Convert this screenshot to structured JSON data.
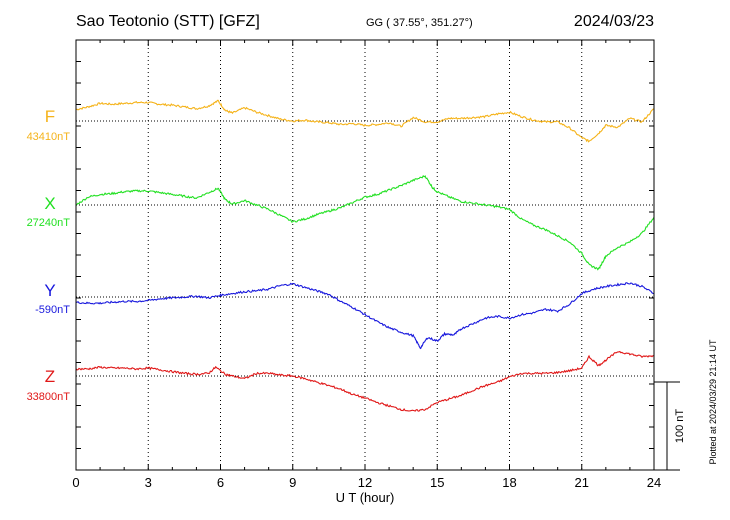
{
  "header": {
    "station": "Sao Teotonio (STT)  [GFZ]",
    "coords": "GG ( 37.55°, 351.27°)",
    "date": "2024/03/23"
  },
  "footer_note": "Plotted at 2024/03/29 21:14 UT",
  "scale_bar_label": "100 nT",
  "colors": {
    "F": "#f5b31a",
    "X": "#22e022",
    "Y": "#1818dd",
    "Z": "#e01818",
    "axis": "#000000",
    "grid": "#000000"
  },
  "chart_data": {
    "type": "line",
    "title": "Sao Teotonio (STT)  [GFZ]",
    "xlabel": "U T (hour)",
    "xlim": [
      0,
      24
    ],
    "x_ticks": [
      0,
      3,
      6,
      9,
      12,
      15,
      18,
      21,
      24
    ],
    "x_tick_labels": [
      "0",
      "3",
      "6",
      "9",
      "12",
      "15",
      "18",
      "21",
      "24"
    ],
    "grid": "dotted vertical lines every 3 hours",
    "scale_nT_per_bar": 100,
    "series": [
      {
        "name": "F",
        "baseline_label": "43410nT",
        "baseline_nT": 43410,
        "x": [
          0,
          0.5,
          1,
          1.5,
          2,
          2.5,
          3,
          3.5,
          4,
          4.5,
          5,
          5.5,
          5.9,
          6.2,
          6.5,
          7,
          7.5,
          8,
          8.5,
          9,
          9.5,
          10,
          10.5,
          11,
          11.5,
          12,
          12.5,
          13,
          13.5,
          14,
          14.5,
          15,
          15.5,
          16,
          16.5,
          17,
          17.5,
          18,
          18.5,
          19,
          19.5,
          20,
          20.5,
          21,
          21.3,
          21.7,
          22,
          22.5,
          23,
          23.5,
          24
        ],
        "values": [
          13,
          16,
          20,
          19,
          20,
          21,
          21,
          19,
          18,
          16,
          14,
          17,
          23,
          12,
          9,
          15,
          10,
          6,
          2,
          0,
          1,
          -1,
          -2,
          -4,
          -3,
          -5,
          -4,
          -2,
          -6,
          4,
          -1,
          -1,
          3,
          3,
          4,
          5,
          8,
          10,
          5,
          1,
          -1,
          -1,
          -8,
          -19,
          -23,
          -14,
          -5,
          -7,
          3,
          -1,
          14
        ]
      },
      {
        "name": "X",
        "baseline_label": "27240nT",
        "baseline_nT": 27240,
        "x": [
          0,
          0.5,
          1,
          1.5,
          2,
          2.5,
          3,
          3.5,
          4,
          4.5,
          5,
          5.5,
          5.9,
          6.2,
          6.5,
          7,
          7.5,
          8,
          8.5,
          9,
          9.5,
          10,
          10.5,
          11,
          11.5,
          12,
          12.5,
          13,
          13.5,
          14,
          14.5,
          14.8,
          15,
          15.5,
          16,
          16.5,
          17,
          17.5,
          18,
          18.5,
          19,
          19.5,
          20,
          20.5,
          21,
          21.3,
          21.7,
          22,
          22.5,
          23,
          23.5,
          24
        ],
        "values": [
          0,
          9,
          12,
          13,
          15,
          16,
          16,
          14,
          12,
          10,
          8,
          14,
          19,
          6,
          1,
          5,
          0,
          -5,
          -12,
          -19,
          -16,
          -11,
          -7,
          -3,
          3,
          9,
          12,
          17,
          22,
          28,
          33,
          20,
          15,
          9,
          4,
          2,
          0,
          -2,
          -5,
          -16,
          -23,
          -28,
          -35,
          -42,
          -55,
          -68,
          -73,
          -58,
          -48,
          -42,
          -32,
          -14
        ]
      },
      {
        "name": "Y",
        "baseline_label": "-590nT",
        "baseline_nT": -590,
        "x": [
          0,
          0.5,
          1,
          1.5,
          2,
          2.5,
          3,
          3.5,
          4,
          4.5,
          5,
          5.5,
          6,
          6.5,
          7,
          7.5,
          8,
          8.5,
          9,
          9.5,
          10,
          10.5,
          11,
          11.5,
          12,
          12.5,
          13,
          13.5,
          14,
          14.3,
          14.6,
          15,
          15.3,
          15.7,
          16,
          16.5,
          17,
          17.5,
          18,
          18.5,
          19,
          19.5,
          20,
          20.5,
          21,
          21.5,
          22,
          22.5,
          23,
          23.5,
          24
        ],
        "values": [
          -6,
          -7,
          -7,
          -6,
          -5,
          -5,
          -4,
          -2,
          -1,
          0,
          1,
          -1,
          2,
          4,
          6,
          7,
          9,
          13,
          15,
          11,
          7,
          3,
          -5,
          -12,
          -20,
          -28,
          -35,
          -40,
          -44,
          -58,
          -46,
          -50,
          -42,
          -43,
          -36,
          -30,
          -24,
          -22,
          -24,
          -20,
          -18,
          -14,
          -16,
          -8,
          4,
          9,
          12,
          14,
          16,
          12,
          4
        ]
      },
      {
        "name": "Z",
        "baseline_label": "33800nT",
        "baseline_nT": 33800,
        "x": [
          0,
          0.5,
          1,
          1.5,
          2,
          2.5,
          3,
          3.5,
          4,
          4.5,
          5,
          5.5,
          5.8,
          6.2,
          6.5,
          7,
          7.5,
          8,
          8.5,
          9,
          9.5,
          10,
          10.5,
          11,
          11.5,
          12,
          12.5,
          13,
          13.5,
          14,
          14.5,
          15,
          15.5,
          16,
          16.5,
          17,
          17.5,
          18,
          18.5,
          19,
          19.5,
          20,
          20.5,
          21,
          21.3,
          21.7,
          22,
          22.5,
          23,
          23.5,
          24
        ],
        "values": [
          8,
          8,
          10,
          9,
          9,
          8,
          9,
          7,
          5,
          3,
          2,
          3,
          10,
          2,
          0,
          -3,
          3,
          3,
          1,
          0,
          -3,
          -7,
          -11,
          -15,
          -21,
          -25,
          -30,
          -34,
          -38,
          -40,
          -38,
          -30,
          -26,
          -22,
          -16,
          -11,
          -7,
          -1,
          3,
          3,
          3,
          4,
          6,
          9,
          22,
          12,
          18,
          28,
          25,
          22,
          23
        ]
      }
    ]
  }
}
